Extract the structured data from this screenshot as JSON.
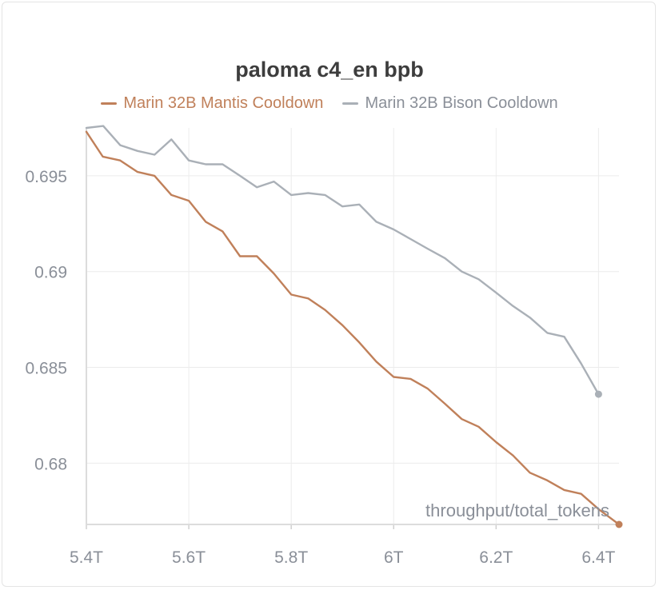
{
  "chart_data": {
    "type": "line",
    "title": "paloma c4_en bpb",
    "xlabel": "throughput/total_tokens",
    "ylabel": "",
    "xlim": [
      5.4,
      6.44
    ],
    "ylim": [
      0.6768,
      0.6975
    ],
    "x_ticks": [
      {
        "v": 5.4,
        "label": "5.4T"
      },
      {
        "v": 5.6,
        "label": "5.6T"
      },
      {
        "v": 5.8,
        "label": "5.8T"
      },
      {
        "v": 6.0,
        "label": "6T"
      },
      {
        "v": 6.2,
        "label": "6.2T"
      },
      {
        "v": 6.4,
        "label": "6.4T"
      }
    ],
    "y_ticks": [
      {
        "v": 0.695,
        "label": "0.695"
      },
      {
        "v": 0.69,
        "label": "0.69"
      },
      {
        "v": 0.685,
        "label": "0.685"
      },
      {
        "v": 0.68,
        "label": "0.68"
      }
    ],
    "grid": true,
    "legend_position": "top",
    "series": [
      {
        "name": "Marin 32B Mantis Cooldown",
        "color": "#c0805a",
        "end_marker": true,
        "points": [
          [
            5.4,
            0.6973
          ],
          [
            5.432,
            0.696
          ],
          [
            5.466,
            0.6958
          ],
          [
            5.5,
            0.6952
          ],
          [
            5.533,
            0.695
          ],
          [
            5.566,
            0.694
          ],
          [
            5.6,
            0.6937
          ],
          [
            5.633,
            0.6926
          ],
          [
            5.666,
            0.6921
          ],
          [
            5.7,
            0.6908
          ],
          [
            5.733,
            0.6908
          ],
          [
            5.766,
            0.6899
          ],
          [
            5.8,
            0.6888
          ],
          [
            5.833,
            0.6886
          ],
          [
            5.866,
            0.688
          ],
          [
            5.9,
            0.6872
          ],
          [
            5.933,
            0.6863
          ],
          [
            5.966,
            0.6853
          ],
          [
            6.0,
            0.6845
          ],
          [
            6.033,
            0.6844
          ],
          [
            6.066,
            0.6839
          ],
          [
            6.1,
            0.6831
          ],
          [
            6.133,
            0.6823
          ],
          [
            6.166,
            0.6819
          ],
          [
            6.2,
            0.6811
          ],
          [
            6.233,
            0.6804
          ],
          [
            6.266,
            0.6795
          ],
          [
            6.3,
            0.6791
          ],
          [
            6.333,
            0.6786
          ],
          [
            6.366,
            0.6784
          ],
          [
            6.4,
            0.6776
          ],
          [
            6.44,
            0.6768
          ]
        ]
      },
      {
        "name": "Marin 32B Bison Cooldown",
        "color": "#aab0b7",
        "end_marker": true,
        "points": [
          [
            5.4,
            0.6975
          ],
          [
            5.433,
            0.6976
          ],
          [
            5.466,
            0.6966
          ],
          [
            5.5,
            0.6963
          ],
          [
            5.533,
            0.6961
          ],
          [
            5.566,
            0.6969
          ],
          [
            5.6,
            0.6958
          ],
          [
            5.633,
            0.6956
          ],
          [
            5.666,
            0.6956
          ],
          [
            5.7,
            0.695
          ],
          [
            5.733,
            0.6944
          ],
          [
            5.766,
            0.6947
          ],
          [
            5.8,
            0.694
          ],
          [
            5.833,
            0.6941
          ],
          [
            5.866,
            0.694
          ],
          [
            5.9,
            0.6934
          ],
          [
            5.933,
            0.6935
          ],
          [
            5.966,
            0.6926
          ],
          [
            6.0,
            0.6922
          ],
          [
            6.033,
            0.6917
          ],
          [
            6.066,
            0.6912
          ],
          [
            6.1,
            0.6907
          ],
          [
            6.133,
            0.69
          ],
          [
            6.166,
            0.6896
          ],
          [
            6.2,
            0.6889
          ],
          [
            6.233,
            0.6882
          ],
          [
            6.266,
            0.6876
          ],
          [
            6.3,
            0.6868
          ],
          [
            6.333,
            0.6866
          ],
          [
            6.366,
            0.6852
          ],
          [
            6.4,
            0.6836
          ]
        ]
      }
    ]
  }
}
